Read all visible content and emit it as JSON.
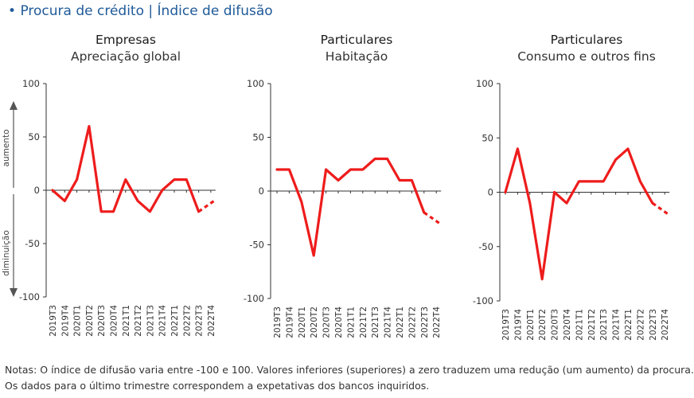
{
  "header": {
    "bullet": "•",
    "title": "Procura de crédito",
    "separator": "|",
    "subtitle": "Índice de difusão"
  },
  "side_labels": {
    "up": "aumento",
    "down": "diminuição"
  },
  "notes": [
    "Notas: O índice de difusão varia entre -100 e 100. Valores inferiores (superiores) a zero traduzem uma redução (um aumento) da procura.",
    "Os dados para o último trimestre correspondem a expetativas dos bancos inquiridos."
  ],
  "chart_data": [
    {
      "type": "line",
      "title": "Empresas",
      "subtitle": "Apreciação global",
      "categories": [
        "2019T3",
        "2019T4",
        "2020T1",
        "2020T2",
        "2020T3",
        "2020T4",
        "2021T1",
        "2021T2",
        "2021T3",
        "2021T4",
        "2022T1",
        "2022T2",
        "2022T3",
        "2022T4"
      ],
      "values": [
        0,
        -10,
        10,
        60,
        -20,
        -20,
        10,
        -10,
        -20,
        0,
        10,
        10,
        -20,
        -10
      ],
      "last_segment_dashed": true,
      "ylim": [
        -100,
        100
      ],
      "yticks": [
        100,
        50,
        0,
        -50,
        -100
      ],
      "color": "#ee1c1c"
    },
    {
      "type": "line",
      "title": "Particulares",
      "subtitle": "Habitação",
      "categories": [
        "2019T3",
        "2019T4",
        "2020T1",
        "2020T2",
        "2020T3",
        "2020T4",
        "2021T1",
        "2021T2",
        "2021T3",
        "2021T4",
        "2022T1",
        "2022T2",
        "2022T3",
        "2022T4"
      ],
      "values": [
        20,
        20,
        -10,
        -60,
        20,
        10,
        20,
        20,
        30,
        30,
        10,
        10,
        -20,
        -30
      ],
      "last_segment_dashed": true,
      "ylim": [
        -100,
        100
      ],
      "yticks": [
        100,
        50,
        0,
        -50,
        -100
      ],
      "color": "#ee1c1c"
    },
    {
      "type": "line",
      "title": "Particulares",
      "subtitle": "Consumo e outros fins",
      "categories": [
        "2019T3",
        "2019T4",
        "2020T1",
        "2020T2",
        "2020T3",
        "2020T4",
        "2021T1",
        "2021T2",
        "2021T3",
        "2021T4",
        "2022T1",
        "2022T2",
        "2022T3",
        "2022T4"
      ],
      "values": [
        0,
        40,
        -10,
        -80,
        0,
        -10,
        10,
        10,
        10,
        30,
        40,
        10,
        -10,
        -20
      ],
      "last_segment_dashed": true,
      "ylim": [
        -100,
        100
      ],
      "yticks": [
        100,
        50,
        0,
        -50,
        -100
      ],
      "color": "#ee1c1c"
    }
  ]
}
